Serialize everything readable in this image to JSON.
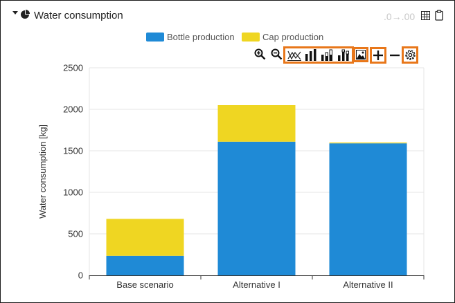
{
  "header": {
    "title": "Water consumption",
    "decimals_control": ".0→.00",
    "icons": [
      "pie-chart-icon",
      "table-icon",
      "clipboard-icon",
      "collapse-caret-icon"
    ]
  },
  "toolbar": {
    "icons": [
      "zoom-in-icon",
      "zoom-out-icon",
      "line-chart-icon",
      "bar-chart-icon",
      "grouped-bar-icon",
      "stacked-bar-icon",
      "image-export-icon",
      "plus-icon",
      "minus-icon",
      "settings-icon"
    ]
  },
  "colors": {
    "bottle": "#1f8ad6",
    "cap": "#efd622",
    "highlight": "#e8771a",
    "grid": "#e6e6e6"
  },
  "chart_data": {
    "type": "bar",
    "stacked": true,
    "categories": [
      "Base scenario",
      "Alternative I",
      "Alternative II"
    ],
    "series": [
      {
        "name": "Bottle production",
        "values": [
          235,
          1610,
          1590
        ]
      },
      {
        "name": "Cap production",
        "values": [
          445,
          440,
          10
        ]
      }
    ],
    "xlabel": "",
    "ylabel": "Water consumption [kg]",
    "ylim": [
      0,
      2500
    ],
    "yticks": [
      "0",
      "500",
      "1000",
      "1500",
      "2000",
      "2500"
    ],
    "grid": true,
    "legend_position": "top-center"
  }
}
